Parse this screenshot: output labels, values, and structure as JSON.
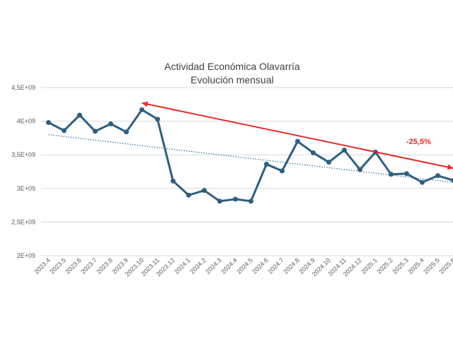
{
  "chart_data": {
    "type": "line",
    "title": "Actividad Económica Olavarría",
    "subtitle": "Evolución mensual",
    "xlabel": "",
    "ylabel": "",
    "ylim": [
      2000000000,
      4500000000
    ],
    "y_ticks": [
      "2E+09",
      "2,5E+09",
      "3E+09",
      "3,5E+09",
      "4E+09",
      "4,5E+09"
    ],
    "y_tick_values": [
      2000000000,
      2500000000,
      3000000000,
      3500000000,
      4000000000,
      4500000000
    ],
    "grid": "horizontal",
    "categories": [
      "2023.4",
      "2023.5",
      "2023.6",
      "2023.7",
      "2023.8",
      "2023.9",
      "2023.10",
      "2023.11",
      "2023.12",
      "2024.1",
      "2024.2",
      "2024.3",
      "2024.4",
      "2024.5",
      "2024.6",
      "2024.7",
      "2024.8",
      "2024.9",
      "2024.10",
      "2024.11",
      "2024.12",
      "2025.1",
      "2025.2",
      "2025.3",
      "2025.4",
      "2025.5",
      "2025.6"
    ],
    "series": [
      {
        "color": "#2e5f80",
        "values": [
          3980000000,
          3860000000,
          4090000000,
          3850000000,
          3960000000,
          3840000000,
          4170000000,
          4030000000,
          3110000000,
          2900000000,
          2970000000,
          2810000000,
          2840000000,
          2810000000,
          3360000000,
          3260000000,
          3700000000,
          3530000000,
          3390000000,
          3570000000,
          3280000000,
          3540000000,
          3210000000,
          3220000000,
          3090000000,
          3190000000,
          3120000000
        ]
      }
    ],
    "trendline": {
      "style": "dotted",
      "color": "#2e6e8e",
      "start_value": 3800000000,
      "end_value": 3090000000
    },
    "annotation": {
      "text": "-25,5%",
      "color": "#e32b2b",
      "from_value": 4270000000,
      "to_value": 3300000000,
      "from_category": "2023.10",
      "to_category": "2025.6"
    }
  }
}
